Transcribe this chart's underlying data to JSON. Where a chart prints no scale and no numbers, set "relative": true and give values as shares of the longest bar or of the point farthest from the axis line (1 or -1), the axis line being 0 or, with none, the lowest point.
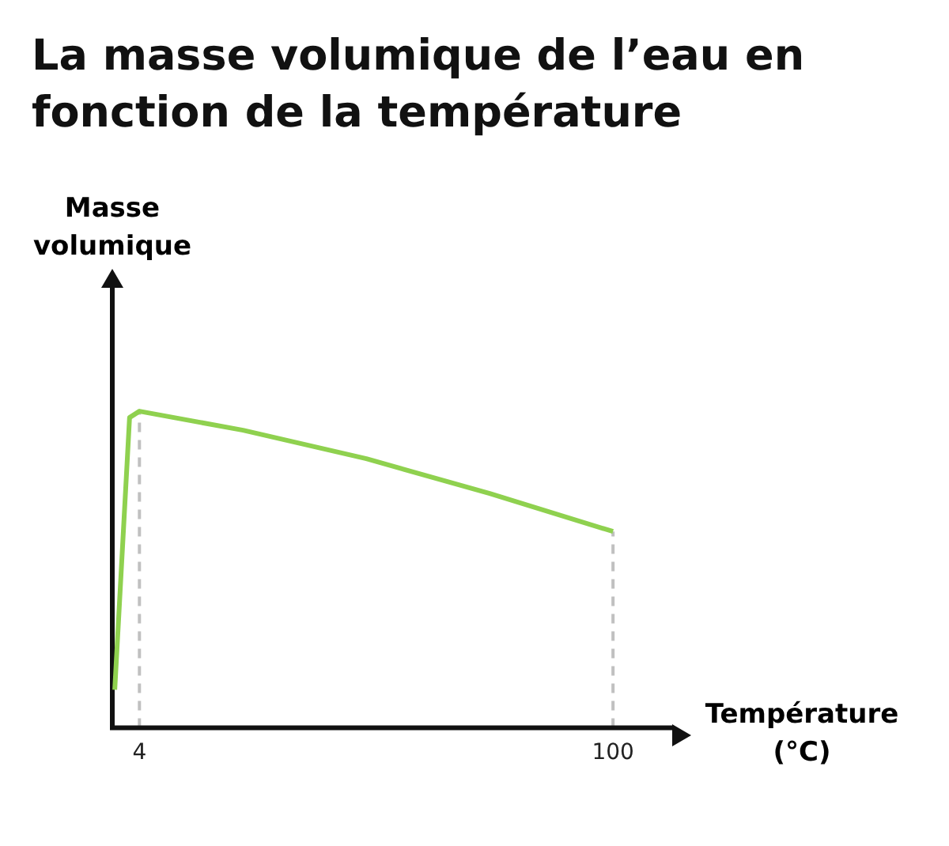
{
  "chart_data": {
    "type": "line",
    "title": "La masse volumique de l’eau en fonction de la température",
    "xlabel": "Température (°C)",
    "annotations": [
      "Masse volumique"
    ],
    "relative": true,
    "color": "#8fd14f",
    "x": [
      -1,
      2,
      4,
      25,
      50,
      75,
      100
    ],
    "values": [
      0.12,
      0.98,
      1,
      0.94,
      0.85,
      0.74,
      0.62
    ],
    "xlim": [
      -1.5,
      112
    ],
    "xticks": [
      4,
      100
    ],
    "grid": false,
    "legend": false,
    "marker": "none",
    "line_style": "solid",
    "ref_lines": [
      {
        "axis": "x",
        "value": 4,
        "color": "#c0c0c0",
        "line_style": "dashed"
      },
      {
        "axis": "x",
        "value": 100,
        "color": "#c0c0c0",
        "line_style": "dashed"
      }
    ]
  }
}
